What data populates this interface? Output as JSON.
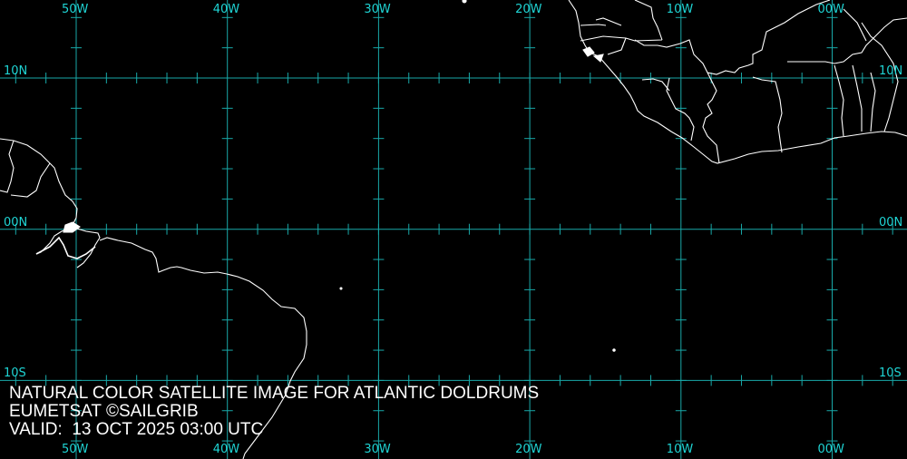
{
  "map": {
    "grid_color": "#19a9a9",
    "label_color": "#1fd4d4",
    "coast_color": "#ffffff",
    "longitudes": [
      "50W",
      "40W",
      "30W",
      "20W",
      "10W",
      "00W"
    ],
    "latitudes": [
      "10N",
      "00N",
      "10S"
    ]
  },
  "caption": {
    "title": "NATURAL COLOR SATELLITE IMAGE FOR ATLANTIC DOLDRUMS",
    "credit": "EUMETSAT ©SAILGRIB",
    "valid": "VALID:  13 OCT 2025 03:00 UTC"
  }
}
